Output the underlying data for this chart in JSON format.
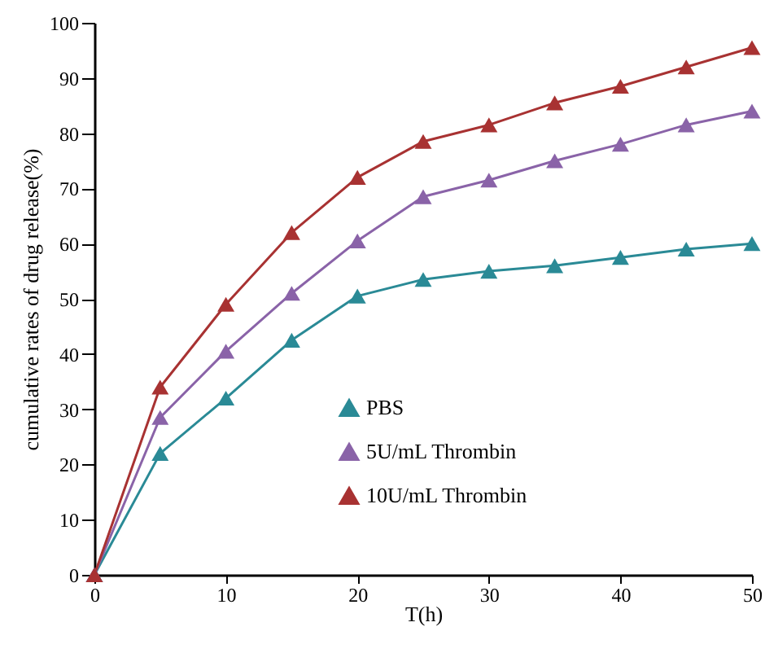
{
  "chart_data": {
    "type": "line",
    "xlabel": "T(h)",
    "ylabel": "cumulative rates of drug release(%)",
    "x": [
      0,
      5,
      10,
      15,
      20,
      25,
      30,
      35,
      40,
      45,
      50
    ],
    "series": [
      {
        "name": "PBS",
        "color": "#2a8a96",
        "values": [
          0,
          22,
          32,
          42.5,
          50.5,
          53.5,
          55,
          56,
          57.5,
          59,
          60
        ]
      },
      {
        "name": "5U/mL Thrombin",
        "color": "#8a63a8",
        "values": [
          0,
          28.5,
          40.5,
          51,
          60.5,
          68.5,
          71.5,
          75,
          78,
          81.5,
          84
        ]
      },
      {
        "name": "10U/mL Thrombin",
        "color": "#a83232",
        "values": [
          0,
          34,
          49,
          62,
          72,
          78.5,
          81.5,
          85.5,
          88.5,
          92,
          95.5
        ]
      }
    ],
    "xlim": [
      0,
      50
    ],
    "xticks": [
      0,
      10,
      20,
      30,
      40,
      50
    ],
    "ylim": [
      0,
      100
    ],
    "yticks": [
      0,
      10,
      20,
      30,
      40,
      50,
      60,
      70,
      80,
      90,
      100
    ],
    "grid": false,
    "legend": "bottom",
    "marker": "triangle",
    "line_style": "solid"
  }
}
